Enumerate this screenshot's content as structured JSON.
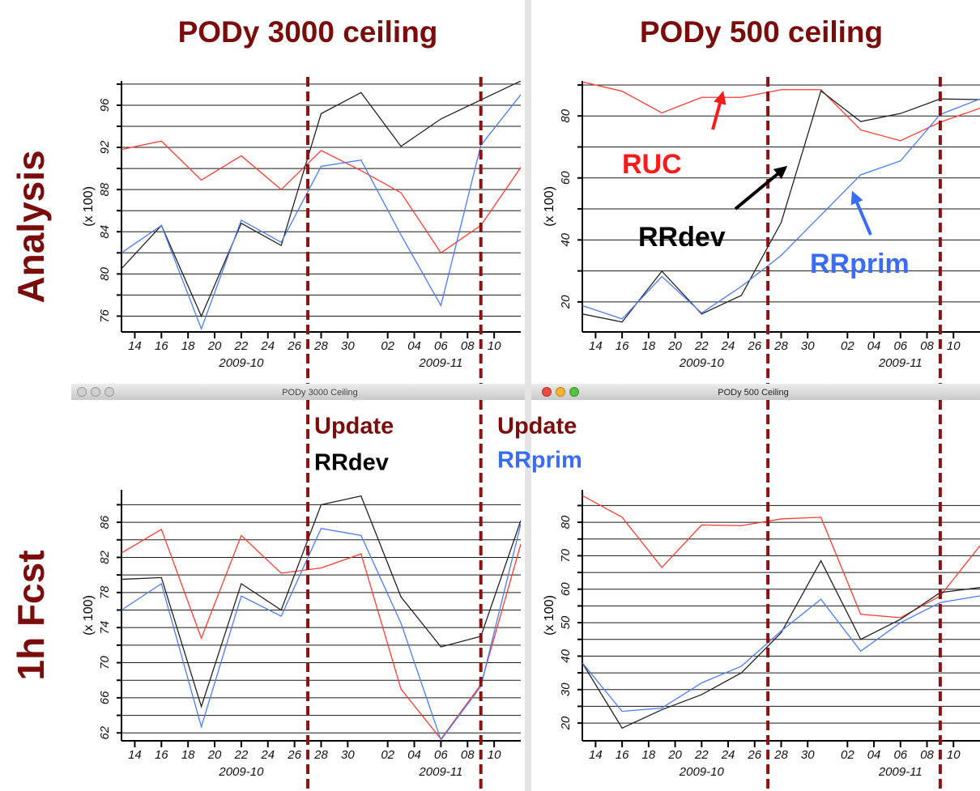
{
  "column_titles": [
    "PODy 3000 ceiling",
    "PODy 500 ceiling"
  ],
  "row_labels": [
    "Analysis",
    "1h Fcst"
  ],
  "window_titles": [
    "PODy 3000 Ceiling",
    "PODy 500 Ceiling"
  ],
  "update_notes": [
    {
      "title": "Update",
      "model": "RRdev",
      "color": "#000000"
    },
    {
      "title": "Update",
      "model": "RRprim",
      "color": "#3a6cf5"
    }
  ],
  "chart_data": [
    {
      "type": "line",
      "y_label": "(x 100)",
      "x": [
        "2009-10-13",
        "2009-10-16",
        "2009-10-19",
        "2009-10-22",
        "2009-10-25",
        "2009-10-28",
        "2009-10-31",
        "2009-11-03",
        "2009-11-06",
        "2009-11-09",
        "2009-11-12"
      ],
      "xlim": [
        "2009-10-13",
        "2009-11-12"
      ],
      "xticks": [
        {
          "value": "2009-10-14",
          "label": "14"
        },
        {
          "value": "2009-10-16",
          "label": "16"
        },
        {
          "value": "2009-10-18",
          "label": "18"
        },
        {
          "value": "2009-10-20",
          "label": "20"
        },
        {
          "value": "2009-10-22",
          "label": "22"
        },
        {
          "value": "2009-10-24",
          "label": "24"
        },
        {
          "value": "2009-10-26",
          "label": "26"
        },
        {
          "value": "2009-10-28",
          "label": "28"
        },
        {
          "value": "2009-10-30",
          "label": "30"
        },
        {
          "value": "2009-11-02",
          "label": "02"
        },
        {
          "value": "2009-11-04",
          "label": "04"
        },
        {
          "value": "2009-11-06",
          "label": "06"
        },
        {
          "value": "2009-11-08",
          "label": "08"
        },
        {
          "value": "2009-11-10",
          "label": "10"
        }
      ],
      "months": [
        "2009-10",
        "2009-11"
      ],
      "ylim": [
        74.5,
        98.3
      ],
      "yticks": [
        76,
        80,
        84,
        88,
        92,
        96
      ],
      "ygrid": [
        76,
        78,
        80,
        82,
        84,
        86,
        88,
        90,
        92,
        94,
        96,
        98
      ],
      "vlines": [
        "2009-10-27",
        "2009-11-09"
      ],
      "series": [
        {
          "color": "#ff3b30",
          "values": [
            91.8,
            92.6,
            88.9,
            91.2,
            88,
            91.7,
            89.8,
            87.7,
            82,
            84.6,
            90.1
          ]
        },
        {
          "color": "#222222",
          "values": [
            80.5,
            84.6,
            76,
            84.8,
            82.7,
            95.2,
            97.2,
            92.1,
            94.7,
            96.5,
            98.3
          ]
        },
        {
          "color": "#4a7bf7",
          "values": [
            82,
            84.6,
            74.8,
            85.1,
            83,
            90.2,
            90.8,
            83.7,
            77,
            92.2,
            97
          ]
        }
      ]
    },
    {
      "type": "line",
      "y_label": "(x 100)",
      "x": [
        "2009-10-13",
        "2009-10-16",
        "2009-10-19",
        "2009-10-22",
        "2009-10-25",
        "2009-10-28",
        "2009-10-31",
        "2009-11-03",
        "2009-11-06",
        "2009-11-09",
        "2009-11-12"
      ],
      "xlim": [
        "2009-10-13",
        "2009-11-12"
      ],
      "xticks": [
        {
          "value": "2009-10-14",
          "label": "14"
        },
        {
          "value": "2009-10-16",
          "label": "16"
        },
        {
          "value": "2009-10-18",
          "label": "18"
        },
        {
          "value": "2009-10-20",
          "label": "20"
        },
        {
          "value": "2009-10-22",
          "label": "22"
        },
        {
          "value": "2009-10-24",
          "label": "24"
        },
        {
          "value": "2009-10-26",
          "label": "26"
        },
        {
          "value": "2009-10-28",
          "label": "28"
        },
        {
          "value": "2009-10-30",
          "label": "30"
        },
        {
          "value": "2009-11-02",
          "label": "02"
        },
        {
          "value": "2009-11-04",
          "label": "04"
        },
        {
          "value": "2009-11-06",
          "label": "06"
        },
        {
          "value": "2009-11-08",
          "label": "08"
        },
        {
          "value": "2009-11-10",
          "label": "10"
        }
      ],
      "months": [
        "2009-10",
        "2009-11"
      ],
      "ylim": [
        10.3,
        91.3
      ],
      "yticks": [
        20,
        40,
        60,
        80
      ],
      "ygrid": [
        20,
        30,
        40,
        50,
        60,
        70,
        80,
        90
      ],
      "vlines": [
        "2009-10-27",
        "2009-11-09"
      ],
      "annotations": [
        {
          "text": "RUC",
          "color": "#ff1a1a"
        },
        {
          "text": "RRdev",
          "color": "#000000"
        },
        {
          "text": "RRprim",
          "color": "#3a6cf5"
        }
      ],
      "series": [
        {
          "color": "#ff3b30",
          "values": [
            91,
            88,
            81,
            86,
            86,
            88.5,
            88.5,
            75.5,
            72,
            78,
            82.5
          ]
        },
        {
          "color": "#222222",
          "values": [
            16.1,
            13.5,
            29.9,
            16.1,
            22.1,
            45.6,
            88.1,
            78.2,
            80.8,
            85.5,
            85.3
          ]
        },
        {
          "color": "#4a7bf7",
          "values": [
            18.8,
            14.5,
            28.2,
            16.4,
            25,
            35,
            48,
            61,
            65.5,
            80.5,
            85.5
          ]
        }
      ]
    },
    {
      "type": "line",
      "y_label": "(x 100)",
      "x": [
        "2009-10-13",
        "2009-10-16",
        "2009-10-19",
        "2009-10-22",
        "2009-10-25",
        "2009-10-28",
        "2009-10-31",
        "2009-11-03",
        "2009-11-06",
        "2009-11-09",
        "2009-11-12"
      ],
      "xlim": [
        "2009-10-13",
        "2009-11-12"
      ],
      "xticks": [
        {
          "value": "2009-10-14",
          "label": "14"
        },
        {
          "value": "2009-10-16",
          "label": "16"
        },
        {
          "value": "2009-10-18",
          "label": "18"
        },
        {
          "value": "2009-10-20",
          "label": "20"
        },
        {
          "value": "2009-10-22",
          "label": "22"
        },
        {
          "value": "2009-10-24",
          "label": "24"
        },
        {
          "value": "2009-10-26",
          "label": "26"
        },
        {
          "value": "2009-10-28",
          "label": "28"
        },
        {
          "value": "2009-10-30",
          "label": "30"
        },
        {
          "value": "2009-11-02",
          "label": "02"
        },
        {
          "value": "2009-11-04",
          "label": "04"
        },
        {
          "value": "2009-11-06",
          "label": "06"
        },
        {
          "value": "2009-11-08",
          "label": "08"
        },
        {
          "value": "2009-11-10",
          "label": "10"
        }
      ],
      "months": [
        "2009-10",
        "2009-11"
      ],
      "ylim": [
        61.1,
        89.7
      ],
      "yticks": [
        62,
        66,
        70,
        74,
        78,
        82,
        86
      ],
      "ygrid": [
        62,
        64,
        66,
        68,
        70,
        72,
        74,
        76,
        78,
        80,
        82,
        84,
        86,
        88
      ],
      "vlines": [
        "2009-10-27",
        "2009-11-09"
      ],
      "series": [
        {
          "color": "#ff3b30",
          "values": [
            82.5,
            85.2,
            72.8,
            84.5,
            80.2,
            80.8,
            82.4,
            67,
            61.3,
            67.5,
            83.5
          ]
        },
        {
          "color": "#222222",
          "values": [
            79.5,
            79.7,
            65,
            79,
            76,
            88,
            89,
            77.5,
            71.8,
            73,
            86.2
          ]
        },
        {
          "color": "#4a7bf7",
          "values": [
            76,
            79,
            62.7,
            77.6,
            75.3,
            85.3,
            84.5,
            74.5,
            61.2,
            67.3,
            85.8
          ]
        }
      ]
    },
    {
      "type": "line",
      "y_label": "(x 100)",
      "x": [
        "2009-10-13",
        "2009-10-16",
        "2009-10-19",
        "2009-10-22",
        "2009-10-25",
        "2009-10-28",
        "2009-10-31",
        "2009-11-03",
        "2009-11-06",
        "2009-11-09",
        "2009-11-12"
      ],
      "xlim": [
        "2009-10-13",
        "2009-11-12"
      ],
      "xticks": [
        {
          "value": "2009-10-14",
          "label": "14"
        },
        {
          "value": "2009-10-16",
          "label": "16"
        },
        {
          "value": "2009-10-18",
          "label": "18"
        },
        {
          "value": "2009-10-20",
          "label": "20"
        },
        {
          "value": "2009-10-22",
          "label": "22"
        },
        {
          "value": "2009-10-24",
          "label": "24"
        },
        {
          "value": "2009-10-26",
          "label": "26"
        },
        {
          "value": "2009-10-28",
          "label": "28"
        },
        {
          "value": "2009-10-30",
          "label": "30"
        },
        {
          "value": "2009-11-02",
          "label": "02"
        },
        {
          "value": "2009-11-04",
          "label": "04"
        },
        {
          "value": "2009-11-06",
          "label": "06"
        },
        {
          "value": "2009-11-08",
          "label": "08"
        },
        {
          "value": "2009-11-10",
          "label": "10"
        }
      ],
      "months": [
        "2009-10",
        "2009-11"
      ],
      "ylim": [
        14.7,
        89.7
      ],
      "yticks": [
        20,
        30,
        40,
        50,
        60,
        70,
        80
      ],
      "ygrid": [
        20,
        25,
        30,
        35,
        40,
        45,
        50,
        55,
        60,
        65,
        70,
        75,
        80,
        85
      ],
      "vlines": [
        "2009-10-27",
        "2009-11-09"
      ],
      "series": [
        {
          "color": "#ff3b30",
          "values": [
            88,
            81.5,
            66.5,
            79.2,
            79,
            81,
            81.5,
            52.5,
            51.5,
            58,
            73
          ]
        },
        {
          "color": "#222222",
          "values": [
            38,
            18.5,
            24,
            28.5,
            35,
            47,
            68.5,
            45,
            51,
            59,
            60.5
          ]
        },
        {
          "color": "#4a7bf7",
          "values": [
            38,
            23.5,
            24.5,
            32,
            37,
            47.5,
            57,
            41.5,
            50,
            56,
            58
          ]
        }
      ]
    }
  ]
}
